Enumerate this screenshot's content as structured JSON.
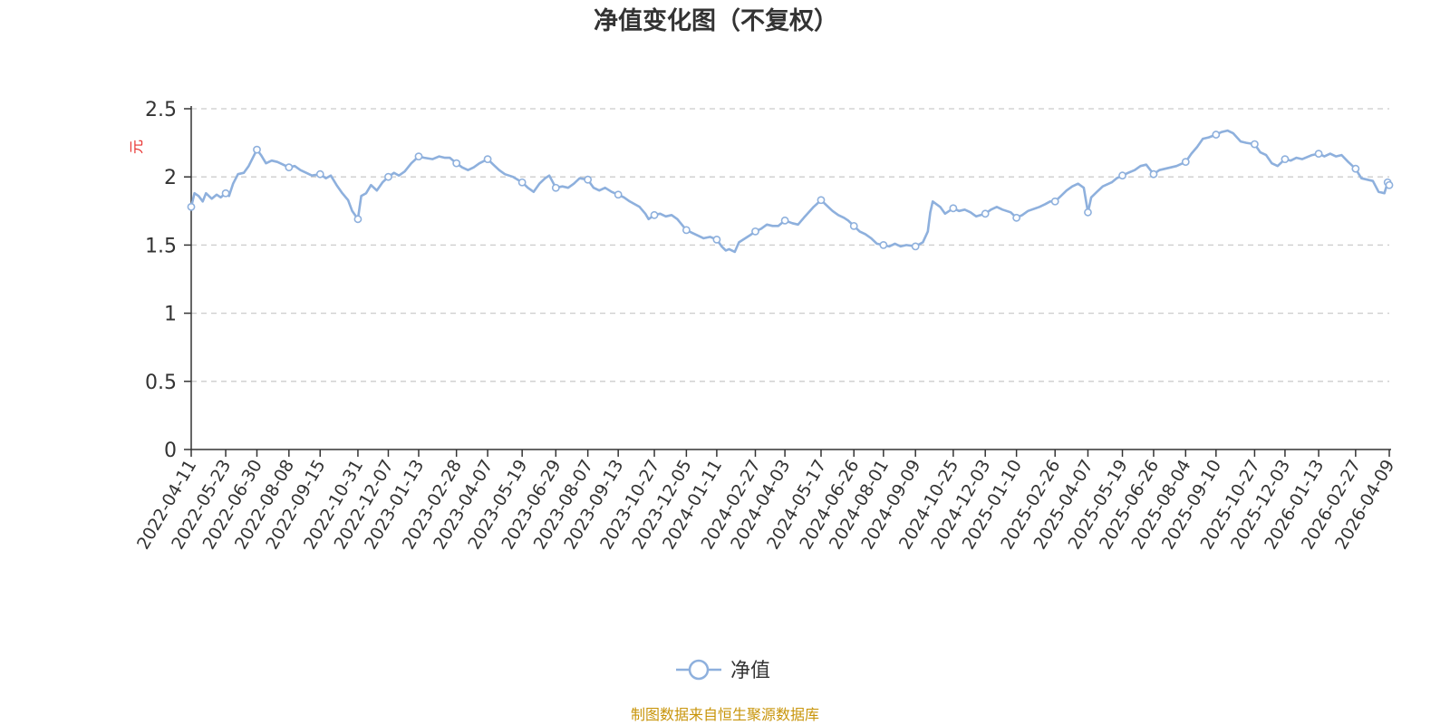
{
  "chart_data": {
    "type": "line",
    "title": "净值变化图（不复权）",
    "ylabel": "元",
    "ylim": [
      0,
      2.5
    ],
    "yticks": [
      "0",
      "0.5",
      "1",
      "1.5",
      "2",
      "2.5"
    ],
    "ytick_values": [
      0,
      0.5,
      1,
      1.5,
      2,
      2.5
    ],
    "x_tick_labels": [
      "2022-04-11",
      "2022-05-23",
      "2022-06-30",
      "2022-08-08",
      "2022-09-15",
      "2022-10-31",
      "2022-12-07",
      "2023-01-13",
      "2023-02-28",
      "2023-04-07",
      "2023-05-19",
      "2023-06-29",
      "2023-08-07",
      "2023-09-13",
      "2023-10-27",
      "2023-12-05",
      "2024-01-11",
      "2024-02-27",
      "2024-04-03",
      "2024-05-17",
      "2024-06-26",
      "2024-08-01",
      "2024-09-09",
      "2024-10-25",
      "2024-12-03",
      "2025-01-10",
      "2025-02-26",
      "2025-04-07",
      "2025-05-19",
      "2025-06-26",
      "2025-08-04",
      "2025-09-10",
      "2025-10-27",
      "2025-12-03",
      "2026-01-13",
      "2026-02-27",
      "2026-04-09"
    ],
    "grid": true,
    "legend_position": "bottom",
    "series": [
      {
        "name": "净值",
        "color": "#8eb0dd",
        "points": [
          [
            "2022-04-11",
            1.78
          ],
          [
            "2022-04-15",
            1.88
          ],
          [
            "2022-04-20",
            1.86
          ],
          [
            "2022-04-25",
            1.82
          ],
          [
            "2022-04-29",
            1.88
          ],
          [
            "2022-05-06",
            1.84
          ],
          [
            "2022-05-12",
            1.87
          ],
          [
            "2022-05-17",
            1.85
          ],
          [
            "2022-05-23",
            1.88
          ],
          [
            "2022-05-27",
            1.86
          ],
          [
            "2022-06-01",
            1.95
          ],
          [
            "2022-06-07",
            2.02
          ],
          [
            "2022-06-14",
            2.03
          ],
          [
            "2022-06-20",
            2.08
          ],
          [
            "2022-06-25",
            2.14
          ],
          [
            "2022-06-30",
            2.2
          ],
          [
            "2022-07-05",
            2.16
          ],
          [
            "2022-07-11",
            2.1
          ],
          [
            "2022-07-18",
            2.12
          ],
          [
            "2022-07-25",
            2.11
          ],
          [
            "2022-08-01",
            2.09
          ],
          [
            "2022-08-08",
            2.07
          ],
          [
            "2022-08-15",
            2.08
          ],
          [
            "2022-08-22",
            2.05
          ],
          [
            "2022-08-29",
            2.03
          ],
          [
            "2022-09-05",
            2.01
          ],
          [
            "2022-09-15",
            2.02
          ],
          [
            "2022-09-22",
            1.99
          ],
          [
            "2022-09-28",
            2.01
          ],
          [
            "2022-10-05",
            1.94
          ],
          [
            "2022-10-12",
            1.88
          ],
          [
            "2022-10-19",
            1.83
          ],
          [
            "2022-10-24",
            1.75
          ],
          [
            "2022-10-31",
            1.69
          ],
          [
            "2022-11-04",
            1.86
          ],
          [
            "2022-11-10",
            1.88
          ],
          [
            "2022-11-16",
            1.94
          ],
          [
            "2022-11-23",
            1.9
          ],
          [
            "2022-11-30",
            1.96
          ],
          [
            "2022-12-07",
            2.0
          ],
          [
            "2022-12-14",
            2.03
          ],
          [
            "2022-12-20",
            2.01
          ],
          [
            "2022-12-27",
            2.04
          ],
          [
            "2023-01-04",
            2.1
          ],
          [
            "2023-01-13",
            2.15
          ],
          [
            "2023-01-20",
            2.14
          ],
          [
            "2023-01-30",
            2.13
          ],
          [
            "2023-02-07",
            2.15
          ],
          [
            "2023-02-14",
            2.14
          ],
          [
            "2023-02-20",
            2.14
          ],
          [
            "2023-02-28",
            2.1
          ],
          [
            "2023-03-07",
            2.07
          ],
          [
            "2023-03-14",
            2.05
          ],
          [
            "2023-03-21",
            2.07
          ],
          [
            "2023-03-28",
            2.1
          ],
          [
            "2023-04-07",
            2.13
          ],
          [
            "2023-04-14",
            2.09
          ],
          [
            "2023-04-21",
            2.05
          ],
          [
            "2023-04-28",
            2.02
          ],
          [
            "2023-05-08",
            2.0
          ],
          [
            "2023-05-19",
            1.96
          ],
          [
            "2023-05-26",
            1.92
          ],
          [
            "2023-06-02",
            1.89
          ],
          [
            "2023-06-09",
            1.95
          ],
          [
            "2023-06-16",
            1.99
          ],
          [
            "2023-06-21",
            2.01
          ],
          [
            "2023-06-29",
            1.92
          ],
          [
            "2023-07-07",
            1.93
          ],
          [
            "2023-07-14",
            1.92
          ],
          [
            "2023-07-21",
            1.95
          ],
          [
            "2023-07-28",
            1.99
          ],
          [
            "2023-08-07",
            1.98
          ],
          [
            "2023-08-14",
            1.92
          ],
          [
            "2023-08-21",
            1.9
          ],
          [
            "2023-08-28",
            1.92
          ],
          [
            "2023-09-05",
            1.89
          ],
          [
            "2023-09-13",
            1.87
          ],
          [
            "2023-09-20",
            1.85
          ],
          [
            "2023-09-27",
            1.82
          ],
          [
            "2023-10-09",
            1.78
          ],
          [
            "2023-10-16",
            1.73
          ],
          [
            "2023-10-20",
            1.69
          ],
          [
            "2023-10-27",
            1.72
          ],
          [
            "2023-11-03",
            1.73
          ],
          [
            "2023-11-10",
            1.71
          ],
          [
            "2023-11-17",
            1.72
          ],
          [
            "2023-11-24",
            1.69
          ],
          [
            "2023-12-05",
            1.61
          ],
          [
            "2023-12-12",
            1.59
          ],
          [
            "2023-12-19",
            1.57
          ],
          [
            "2023-12-26",
            1.55
          ],
          [
            "2024-01-03",
            1.56
          ],
          [
            "2024-01-11",
            1.54
          ],
          [
            "2024-01-17",
            1.49
          ],
          [
            "2024-01-22",
            1.46
          ],
          [
            "2024-01-26",
            1.47
          ],
          [
            "2024-02-02",
            1.45
          ],
          [
            "2024-02-07",
            1.52
          ],
          [
            "2024-02-20",
            1.57
          ],
          [
            "2024-02-27",
            1.6
          ],
          [
            "2024-03-05",
            1.62
          ],
          [
            "2024-03-12",
            1.65
          ],
          [
            "2024-03-19",
            1.64
          ],
          [
            "2024-03-26",
            1.64
          ],
          [
            "2024-04-03",
            1.68
          ],
          [
            "2024-04-12",
            1.66
          ],
          [
            "2024-04-19",
            1.65
          ],
          [
            "2024-04-26",
            1.7
          ],
          [
            "2024-05-08",
            1.78
          ],
          [
            "2024-05-17",
            1.83
          ],
          [
            "2024-05-24",
            1.79
          ],
          [
            "2024-05-31",
            1.75
          ],
          [
            "2024-06-07",
            1.72
          ],
          [
            "2024-06-14",
            1.7
          ],
          [
            "2024-06-19",
            1.68
          ],
          [
            "2024-06-26",
            1.64
          ],
          [
            "2024-07-03",
            1.6
          ],
          [
            "2024-07-10",
            1.58
          ],
          [
            "2024-07-17",
            1.55
          ],
          [
            "2024-07-24",
            1.51
          ],
          [
            "2024-08-01",
            1.5
          ],
          [
            "2024-08-08",
            1.49
          ],
          [
            "2024-08-15",
            1.51
          ],
          [
            "2024-08-22",
            1.49
          ],
          [
            "2024-08-29",
            1.5
          ],
          [
            "2024-09-09",
            1.49
          ],
          [
            "2024-09-18",
            1.52
          ],
          [
            "2024-09-24",
            1.6
          ],
          [
            "2024-09-27",
            1.74
          ],
          [
            "2024-09-30",
            1.82
          ],
          [
            "2024-10-09",
            1.78
          ],
          [
            "2024-10-15",
            1.73
          ],
          [
            "2024-10-25",
            1.77
          ],
          [
            "2024-11-01",
            1.75
          ],
          [
            "2024-11-08",
            1.76
          ],
          [
            "2024-11-15",
            1.74
          ],
          [
            "2024-11-22",
            1.71
          ],
          [
            "2024-12-03",
            1.73
          ],
          [
            "2024-12-10",
            1.76
          ],
          [
            "2024-12-17",
            1.78
          ],
          [
            "2024-12-24",
            1.76
          ],
          [
            "2025-01-03",
            1.74
          ],
          [
            "2025-01-10",
            1.7
          ],
          [
            "2025-01-17",
            1.72
          ],
          [
            "2025-01-24",
            1.75
          ],
          [
            "2025-02-07",
            1.78
          ],
          [
            "2025-02-14",
            1.8
          ],
          [
            "2025-02-20",
            1.82
          ],
          [
            "2025-02-26",
            1.82
          ],
          [
            "2025-03-05",
            1.86
          ],
          [
            "2025-03-12",
            1.9
          ],
          [
            "2025-03-19",
            1.93
          ],
          [
            "2025-03-26",
            1.95
          ],
          [
            "2025-04-02",
            1.92
          ],
          [
            "2025-04-07",
            1.74
          ],
          [
            "2025-04-11",
            1.85
          ],
          [
            "2025-04-18",
            1.89
          ],
          [
            "2025-04-25",
            1.93
          ],
          [
            "2025-05-06",
            1.96
          ],
          [
            "2025-05-12",
            1.99
          ],
          [
            "2025-05-19",
            2.01
          ],
          [
            "2025-05-26",
            2.03
          ],
          [
            "2025-06-03",
            2.05
          ],
          [
            "2025-06-10",
            2.08
          ],
          [
            "2025-06-17",
            2.09
          ],
          [
            "2025-06-26",
            2.02
          ],
          [
            "2025-07-03",
            2.05
          ],
          [
            "2025-07-10",
            2.06
          ],
          [
            "2025-07-17",
            2.07
          ],
          [
            "2025-07-24",
            2.08
          ],
          [
            "2025-08-04",
            2.11
          ],
          [
            "2025-08-11",
            2.17
          ],
          [
            "2025-08-18",
            2.22
          ],
          [
            "2025-08-25",
            2.28
          ],
          [
            "2025-09-01",
            2.29
          ],
          [
            "2025-09-10",
            2.31
          ],
          [
            "2025-09-17",
            2.33
          ],
          [
            "2025-09-24",
            2.34
          ],
          [
            "2025-10-01",
            2.32
          ],
          [
            "2025-10-10",
            2.26
          ],
          [
            "2025-10-17",
            2.25
          ],
          [
            "2025-10-27",
            2.24
          ],
          [
            "2025-11-03",
            2.18
          ],
          [
            "2025-11-10",
            2.16
          ],
          [
            "2025-11-17",
            2.1
          ],
          [
            "2025-11-24",
            2.08
          ],
          [
            "2025-12-03",
            2.13
          ],
          [
            "2025-12-10",
            2.12
          ],
          [
            "2025-12-17",
            2.14
          ],
          [
            "2025-12-24",
            2.13
          ],
          [
            "2026-01-05",
            2.16
          ],
          [
            "2026-01-13",
            2.17
          ],
          [
            "2026-01-20",
            2.15
          ],
          [
            "2026-01-27",
            2.17
          ],
          [
            "2026-02-03",
            2.15
          ],
          [
            "2026-02-10",
            2.16
          ],
          [
            "2026-02-18",
            2.11
          ],
          [
            "2026-02-27",
            2.06
          ],
          [
            "2026-03-06",
            1.99
          ],
          [
            "2026-03-13",
            1.98
          ],
          [
            "2026-03-20",
            1.97
          ],
          [
            "2026-03-27",
            1.89
          ],
          [
            "2026-04-03",
            1.88
          ],
          [
            "2026-04-07",
            1.96
          ],
          [
            "2026-04-09",
            1.94
          ]
        ],
        "marker_dates": [
          "2022-04-11",
          "2022-05-23",
          "2022-06-30",
          "2022-08-08",
          "2022-09-15",
          "2022-10-31",
          "2022-12-07",
          "2023-01-13",
          "2023-02-28",
          "2023-04-07",
          "2023-05-19",
          "2023-06-29",
          "2023-08-07",
          "2023-09-13",
          "2023-10-27",
          "2023-12-05",
          "2024-01-11",
          "2024-02-27",
          "2024-04-03",
          "2024-05-17",
          "2024-06-26",
          "2024-08-01",
          "2024-09-09",
          "2024-10-25",
          "2024-12-03",
          "2025-01-10",
          "2025-02-26",
          "2025-04-07",
          "2025-05-19",
          "2025-06-26",
          "2025-08-04",
          "2025-09-10",
          "2025-10-27",
          "2025-12-03",
          "2026-01-13",
          "2026-02-27",
          "2026-04-07",
          "2026-04-09"
        ]
      }
    ]
  },
  "source_note": "制图数据来自恒生聚源数据库"
}
